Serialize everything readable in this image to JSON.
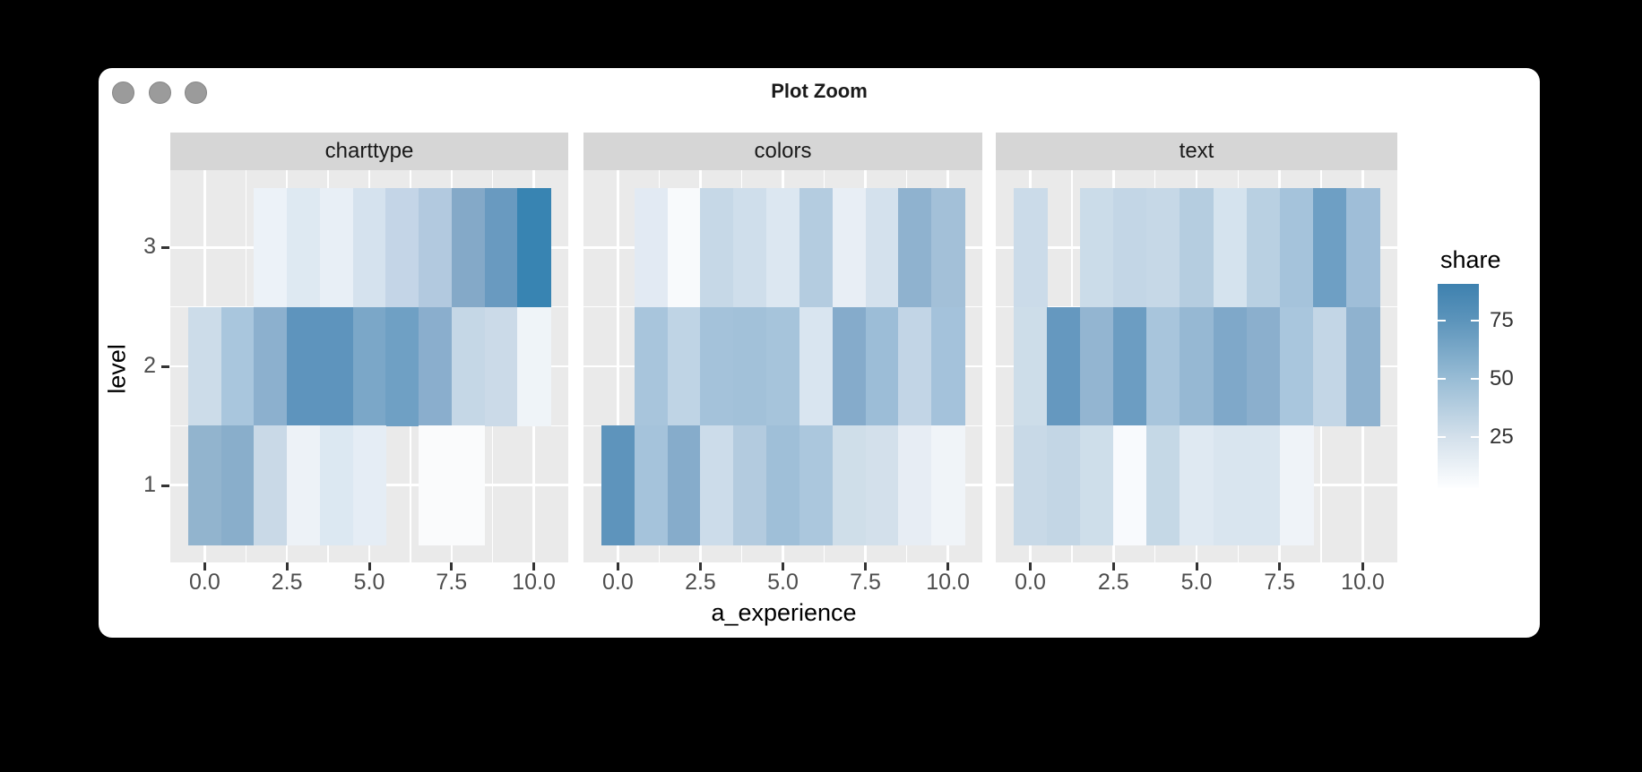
{
  "window": {
    "title": "Plot Zoom",
    "buttons": [
      "close",
      "minimize",
      "zoom"
    ]
  },
  "chart_data": {
    "type": "heatmap",
    "title": "",
    "xlabel": "a_experience",
    "ylabel": "level",
    "facets": [
      "charttype",
      "colors",
      "text"
    ],
    "x": [
      0,
      1,
      2,
      3,
      4,
      5,
      6,
      7,
      8,
      9,
      10
    ],
    "x_range": [
      -0.5,
      10.5
    ],
    "x_ticks": {
      "labels": [
        "0.0",
        "2.5",
        "5.0",
        "7.5",
        "10.0"
      ],
      "values": [
        0,
        2.5,
        5,
        7.5,
        10
      ],
      "minor_values": [
        1.25,
        3.75,
        6.25,
        8.75
      ]
    },
    "y_levels": [
      3,
      2,
      1
    ],
    "y_range": [
      0.5,
      3.5
    ],
    "y_minor_values": [
      2.5,
      1.5
    ],
    "grid": "white-on-gray",
    "panel_bg": "#EAEAEA",
    "strip_bg": "#D6D6D6",
    "legend": {
      "title": "share",
      "position": "right",
      "ticks": [
        75,
        50,
        25
      ],
      "tick_fractions_from_top": [
        0.18,
        0.465,
        0.75
      ],
      "range_approx": [
        3,
        91
      ],
      "gradient_top_to_bottom": [
        {
          "pos": "0%",
          "color": "#3E81AF"
        },
        {
          "pos": "18%",
          "color": "#5C94BB"
        },
        {
          "pos": "46.5%",
          "color": "#98BCD5"
        },
        {
          "pos": "75%",
          "color": "#D3E0EB"
        },
        {
          "pos": "100%",
          "color": "#FDFEFF"
        }
      ]
    },
    "panels": [
      {
        "facet": "charttype",
        "levels_top_to_bottom": [
          3,
          2,
          1
        ],
        "values": [
          [
            null,
            null,
            10,
            17,
            12,
            23,
            30,
            38,
            57,
            67,
            89
          ],
          [
            27,
            43,
            53,
            71,
            71,
            60,
            64,
            54,
            30,
            27,
            8
          ],
          [
            51,
            55,
            29,
            9,
            19,
            13,
            null,
            2,
            2,
            null,
            null
          ]
        ],
        "colors": [
          [
            null,
            null,
            "#ECF2F8",
            "#DEE9F2",
            "#E8EFF6",
            "#D5E2EE",
            "#C4D5E7",
            "#B2C9DF",
            "#84A9C8",
            "#699AC0",
            "#3884B2"
          ],
          [
            "#CCDCE9",
            "#A9C6DD",
            "#8CB0CE",
            "#5E94BD",
            "#5E94BD",
            "#7BA7C8",
            "#6FA0C4",
            "#8AAECD",
            "#C5D7E6",
            "#CBDAE8",
            "#EFF4F8"
          ],
          [
            "#92B4CE",
            "#89AECB",
            "#C9D9E7",
            "#EDF2F7",
            "#DCE8F2",
            "#E5EDF5",
            null,
            "#FAFBFC",
            "#FAFBFC",
            null,
            null
          ]
        ]
      },
      {
        "facet": "colors",
        "levels_top_to_bottom": [
          3,
          2,
          1
        ],
        "values": [
          [
            null,
            15,
            3,
            30,
            26,
            19,
            37,
            11,
            23,
            52,
            45
          ],
          [
            null,
            44,
            34,
            45,
            46,
            44,
            21,
            56,
            48,
            32,
            45
          ],
          [
            71,
            45,
            56,
            26,
            38,
            47,
            42,
            25,
            24,
            12,
            6
          ]
        ],
        "colors": [
          [
            null,
            "#E2EAF3",
            "#F8FAFC",
            "#C6D8E7",
            "#CFDEEB",
            "#DCE7F1",
            "#B4CCE0",
            "#E8EEF5",
            "#D4E1ED",
            "#8FB2CF",
            "#A3C0D8"
          ],
          [
            null,
            "#A8C5DC",
            "#BFD4E5",
            "#A4C2DA",
            "#A2C1D9",
            "#A6C4DB",
            "#D9E5F0",
            "#85ABCB",
            "#9CBDD7",
            "#C2D5E6",
            "#A4C2DB"
          ],
          [
            "#5E94BC",
            "#A5C3DB",
            "#86ACCB",
            "#CCDCEA",
            "#B3CBDF",
            "#9FBFD8",
            "#ABC7DD",
            "#CFDEE9",
            "#D3E0EB",
            "#E7EDF4",
            "#F0F4F8"
          ]
        ]
      },
      {
        "facet": "text",
        "levels_top_to_bottom": [
          3,
          2,
          1
        ],
        "values": [
          [
            28,
            null,
            28,
            31,
            30,
            37,
            22,
            36,
            45,
            65,
            47
          ],
          [
            27,
            69,
            51,
            66,
            44,
            50,
            58,
            53,
            43,
            31,
            52
          ],
          [
            29,
            31,
            26,
            2,
            30,
            17,
            20,
            20,
            8,
            null,
            null
          ]
        ],
        "colors": [
          [
            "#CBDBE9",
            null,
            "#CBDCE9",
            "#C3D6E6",
            "#C6D8E7",
            "#B5CDE0",
            "#D5E3EE",
            "#B9D0E2",
            "#A5C3DB",
            "#6E9FC4",
            "#9FBED8"
          ],
          [
            "#CDDDE9",
            "#6598BF",
            "#93B5D1",
            "#6C9DC2",
            "#A8C5DC",
            "#96B8D3",
            "#7FA8C9",
            "#8BAFCD",
            "#A9C6DD",
            "#C3D6E6",
            "#8FB2CF"
          ],
          [
            "#C8D9E7",
            "#C3D6E5",
            "#CEDEEA",
            "#F8FAFD",
            "#C5D8E6",
            "#DFE9F2",
            "#D9E5EF",
            "#D9E5EF",
            "#EFF3F8",
            null,
            null
          ]
        ]
      }
    ]
  }
}
